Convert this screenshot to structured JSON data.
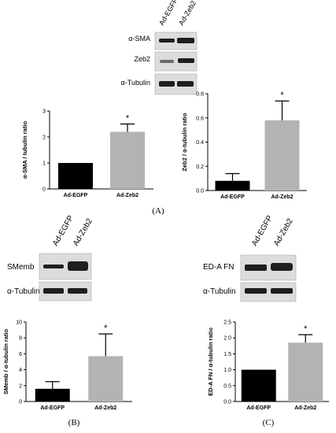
{
  "panel_labels": {
    "A": "(A)",
    "B": "(B)",
    "C": "(C)"
  },
  "blots": {
    "A": {
      "lanes": [
        "Ad-EGFP",
        "Ad-Zeb2"
      ],
      "rows": [
        "α-SMA",
        "Zeb2",
        "α-Tubulin"
      ]
    },
    "B": {
      "lanes": [
        "Ad-EGFP",
        "Ad-Zeb2"
      ],
      "rows": [
        "SMemb",
        "α-Tubulin"
      ]
    },
    "C": {
      "lanes": [
        "Ad-EGFP",
        "Ad-Zeb2"
      ],
      "rows": [
        "ED-A FN",
        "α-Tubulin"
      ]
    }
  },
  "colors": {
    "control_bar": "#000000",
    "treatment_bar": "#b3b3b3",
    "band": "#1e1e1e"
  },
  "chart_data": [
    {
      "panel": "A",
      "type": "bar",
      "categories": [
        "Ad-EGFP",
        "Ad-Zeb2"
      ],
      "values": [
        1.0,
        2.2
      ],
      "errors": [
        0,
        0.3
      ],
      "significance": [
        "",
        "*"
      ],
      "ylabel": "α-SMA / tubulin ratio",
      "xlabel": "",
      "ylim": [
        0,
        3
      ],
      "yticks": [
        0,
        1,
        2,
        3
      ],
      "grid": false
    },
    {
      "panel": "A",
      "type": "bar",
      "categories": [
        "Ad-EGFP",
        "Ad-Zeb2"
      ],
      "values": [
        0.08,
        0.58
      ],
      "errors": [
        0.06,
        0.16
      ],
      "significance": [
        "",
        "*"
      ],
      "ylabel": "Zeb2 / α-tubulin ratio",
      "xlabel": "",
      "ylim": [
        0,
        0.8
      ],
      "yticks": [
        0.0,
        0.2,
        0.4,
        0.6,
        0.8
      ],
      "grid": false
    },
    {
      "panel": "B",
      "type": "bar",
      "categories": [
        "Ad-EGFP",
        "Ad-Zeb2"
      ],
      "values": [
        1.6,
        5.7
      ],
      "errors": [
        0.9,
        2.8
      ],
      "significance": [
        "",
        "*"
      ],
      "ylabel": "SMemb / α-tubulin ratio",
      "xlabel": "",
      "ylim": [
        0,
        10
      ],
      "yticks": [
        0,
        2,
        4,
        6,
        8,
        10
      ],
      "grid": false
    },
    {
      "panel": "C",
      "type": "bar",
      "categories": [
        "Ad-EGFP",
        "Ad-Zeb2"
      ],
      "values": [
        1.0,
        1.85
      ],
      "errors": [
        0,
        0.25
      ],
      "significance": [
        "",
        "*"
      ],
      "ylabel": "ED-A FN / α-tubulin ratio",
      "xlabel": "",
      "ylim": [
        0,
        2.5
      ],
      "yticks": [
        0.0,
        0.5,
        1.0,
        1.5,
        2.0,
        2.5
      ],
      "grid": false
    }
  ]
}
